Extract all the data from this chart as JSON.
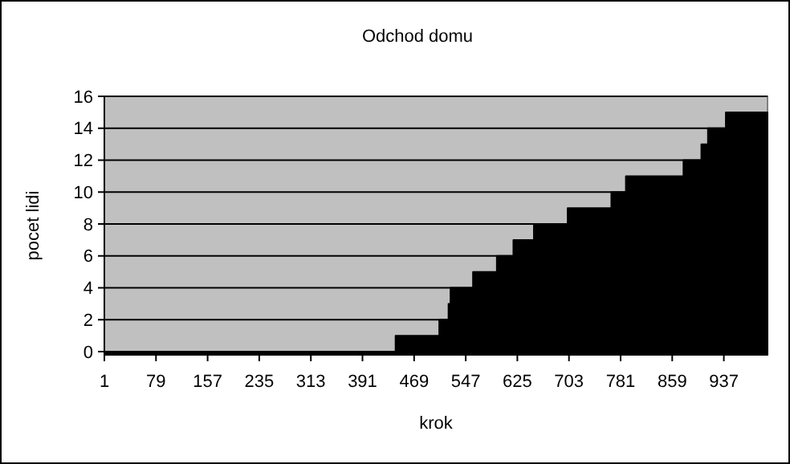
{
  "chart_data": {
    "type": "area",
    "title": "Odchod domu",
    "xlabel": "krok",
    "ylabel": "pocet lidi",
    "x": [
      1,
      441,
      441,
      507,
      507,
      521,
      521,
      524,
      524,
      558,
      558,
      594,
      594,
      619,
      619,
      650,
      650,
      701,
      701,
      767,
      767,
      789,
      789,
      876,
      876,
      903,
      903,
      913,
      913,
      940,
      940,
      1003
    ],
    "series": [
      {
        "color": "#000000",
        "values": [
          0,
          0,
          1,
          1,
          2,
          2,
          3,
          3,
          4,
          4,
          5,
          5,
          6,
          6,
          7,
          7,
          8,
          8,
          9,
          9,
          10,
          10,
          11,
          11,
          12,
          12,
          13,
          13,
          14,
          14,
          15,
          15
        ]
      }
    ],
    "xlim": [
      1,
      1003
    ],
    "xticks": [
      1,
      79,
      157,
      235,
      313,
      391,
      469,
      547,
      625,
      703,
      781,
      859,
      937
    ],
    "ylim": [
      -0.2,
      16
    ],
    "yticks": [
      0,
      2,
      4,
      6,
      8,
      10,
      12,
      14,
      16
    ],
    "grid": "y"
  }
}
